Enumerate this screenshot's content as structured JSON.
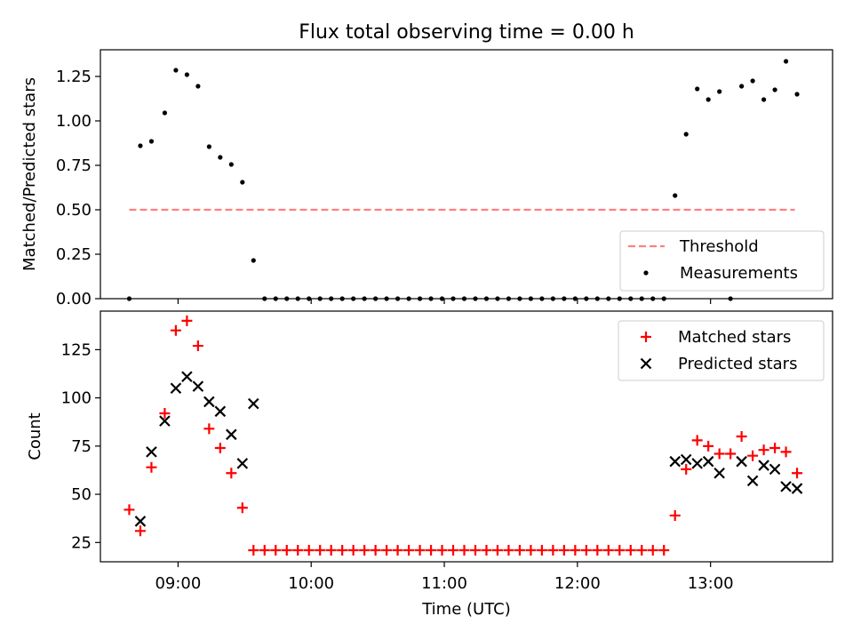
{
  "title": "Flux total observing time = 0.00 h",
  "chart_data": [
    {
      "type": "scatter",
      "ylabel": "Matched/Predicted stars",
      "xlabel": "",
      "xlim": [
        "08:25",
        "13:55"
      ],
      "ylim": [
        0,
        1.4
      ],
      "yticks": [
        0.0,
        0.25,
        0.5,
        0.75,
        1.0,
        1.25
      ],
      "ytick_labels": [
        "0.00",
        "0.25",
        "0.50",
        "0.75",
        "1.00",
        "1.25"
      ],
      "xticks": [
        "09:00",
        "10:00",
        "11:00",
        "12:00",
        "13:00"
      ],
      "grid": false,
      "legend_position": "bottom-right",
      "threshold": {
        "name": "Threshold",
        "y": 0.5,
        "x_range": [
          "08:38",
          "13:38"
        ],
        "color": "#ff7f7f"
      },
      "series": [
        {
          "name": "Measurements",
          "color": "#000000",
          "points": [
            [
              "08:38",
              0.0
            ],
            [
              "08:43",
              0.86
            ],
            [
              "08:48",
              0.885
            ],
            [
              "08:54",
              1.045
            ],
            [
              "08:59",
              1.285
            ],
            [
              "09:04",
              1.26
            ],
            [
              "09:09",
              1.195
            ],
            [
              "09:14",
              0.855
            ],
            [
              "09:19",
              0.795
            ],
            [
              "09:24",
              0.755
            ],
            [
              "09:29",
              0.655
            ],
            [
              "09:34",
              0.215
            ],
            [
              "09:39",
              0.0
            ],
            [
              "09:44",
              0.0
            ],
            [
              "09:49",
              0.0
            ],
            [
              "09:54",
              0.0
            ],
            [
              "09:59",
              0.0
            ],
            [
              "10:04",
              0.0
            ],
            [
              "10:09",
              0.0
            ],
            [
              "10:14",
              0.0
            ],
            [
              "10:19",
              0.0
            ],
            [
              "10:24",
              0.0
            ],
            [
              "10:29",
              0.0
            ],
            [
              "10:34",
              0.0
            ],
            [
              "10:39",
              0.0
            ],
            [
              "10:44",
              0.0
            ],
            [
              "10:49",
              0.0
            ],
            [
              "10:54",
              0.0
            ],
            [
              "10:59",
              0.0
            ],
            [
              "11:04",
              0.0
            ],
            [
              "11:09",
              0.0
            ],
            [
              "11:14",
              0.0
            ],
            [
              "11:19",
              0.0
            ],
            [
              "11:24",
              0.0
            ],
            [
              "11:29",
              0.0
            ],
            [
              "11:34",
              0.0
            ],
            [
              "11:39",
              0.0
            ],
            [
              "11:44",
              0.0
            ],
            [
              "11:49",
              0.0
            ],
            [
              "11:54",
              0.0
            ],
            [
              "11:59",
              0.0
            ],
            [
              "12:04",
              0.0
            ],
            [
              "12:09",
              0.0
            ],
            [
              "12:14",
              0.0
            ],
            [
              "12:19",
              0.0
            ],
            [
              "12:24",
              0.0
            ],
            [
              "12:29",
              0.0
            ],
            [
              "12:34",
              0.0
            ],
            [
              "12:39",
              0.0
            ],
            [
              "12:44",
              0.58
            ],
            [
              "12:49",
              0.925
            ],
            [
              "12:54",
              1.18
            ],
            [
              "12:59",
              1.12
            ],
            [
              "13:04",
              1.165
            ],
            [
              "13:09",
              0.0
            ],
            [
              "13:14",
              1.195
            ],
            [
              "13:19",
              1.225
            ],
            [
              "13:24",
              1.12
            ],
            [
              "13:29",
              1.175
            ],
            [
              "13:34",
              1.335
            ],
            [
              "13:39",
              1.15
            ]
          ]
        }
      ]
    },
    {
      "type": "scatter",
      "ylabel": "Count",
      "xlabel": "Time (UTC)",
      "xlim": [
        "08:25",
        "13:55"
      ],
      "ylim": [
        15,
        145
      ],
      "yticks": [
        25,
        50,
        75,
        100,
        125
      ],
      "ytick_labels": [
        "25",
        "50",
        "75",
        "100",
        "125"
      ],
      "xticks": [
        "09:00",
        "10:00",
        "11:00",
        "12:00",
        "13:00"
      ],
      "grid": false,
      "legend_position": "top-right",
      "series": [
        {
          "name": "Matched stars",
          "marker": "plus",
          "color": "#ff0000",
          "points": [
            [
              "08:38",
              42
            ],
            [
              "08:43",
              31
            ],
            [
              "08:48",
              64
            ],
            [
              "08:54",
              92
            ],
            [
              "08:59",
              135
            ],
            [
              "09:04",
              140
            ],
            [
              "09:09",
              127
            ],
            [
              "09:14",
              84
            ],
            [
              "09:19",
              74
            ],
            [
              "09:24",
              61
            ],
            [
              "09:29",
              43
            ],
            [
              "09:34",
              21
            ],
            [
              "09:39",
              21
            ],
            [
              "09:44",
              21
            ],
            [
              "09:49",
              21
            ],
            [
              "09:54",
              21
            ],
            [
              "09:59",
              21
            ],
            [
              "10:04",
              21
            ],
            [
              "10:09",
              21
            ],
            [
              "10:14",
              21
            ],
            [
              "10:19",
              21
            ],
            [
              "10:24",
              21
            ],
            [
              "10:29",
              21
            ],
            [
              "10:34",
              21
            ],
            [
              "10:39",
              21
            ],
            [
              "10:44",
              21
            ],
            [
              "10:49",
              21
            ],
            [
              "10:54",
              21
            ],
            [
              "10:59",
              21
            ],
            [
              "11:04",
              21
            ],
            [
              "11:09",
              21
            ],
            [
              "11:14",
              21
            ],
            [
              "11:19",
              21
            ],
            [
              "11:24",
              21
            ],
            [
              "11:29",
              21
            ],
            [
              "11:34",
              21
            ],
            [
              "11:39",
              21
            ],
            [
              "11:44",
              21
            ],
            [
              "11:49",
              21
            ],
            [
              "11:54",
              21
            ],
            [
              "11:59",
              21
            ],
            [
              "12:04",
              21
            ],
            [
              "12:09",
              21
            ],
            [
              "12:14",
              21
            ],
            [
              "12:19",
              21
            ],
            [
              "12:24",
              21
            ],
            [
              "12:29",
              21
            ],
            [
              "12:34",
              21
            ],
            [
              "12:39",
              21
            ],
            [
              "12:44",
              39
            ],
            [
              "12:49",
              63
            ],
            [
              "12:54",
              78
            ],
            [
              "12:59",
              75
            ],
            [
              "13:04",
              71
            ],
            [
              "13:09",
              71
            ],
            [
              "13:14",
              80
            ],
            [
              "13:19",
              70
            ],
            [
              "13:24",
              73
            ],
            [
              "13:29",
              74
            ],
            [
              "13:34",
              72
            ],
            [
              "13:39",
              61
            ]
          ]
        },
        {
          "name": "Predicted stars",
          "marker": "x",
          "color": "#000000",
          "points": [
            [
              "08:43",
              36
            ],
            [
              "08:48",
              72
            ],
            [
              "08:54",
              88
            ],
            [
              "08:59",
              105
            ],
            [
              "09:04",
              111
            ],
            [
              "09:09",
              106
            ],
            [
              "09:14",
              98
            ],
            [
              "09:19",
              93
            ],
            [
              "09:24",
              81
            ],
            [
              "09:29",
              66
            ],
            [
              "09:34",
              97
            ],
            [
              "12:44",
              67
            ],
            [
              "12:49",
              68
            ],
            [
              "12:54",
              66
            ],
            [
              "12:59",
              67
            ],
            [
              "13:04",
              61
            ],
            [
              "13:14",
              67
            ],
            [
              "13:19",
              57
            ],
            [
              "13:24",
              65
            ],
            [
              "13:29",
              63
            ],
            [
              "13:34",
              54
            ],
            [
              "13:39",
              53
            ]
          ]
        }
      ]
    }
  ]
}
